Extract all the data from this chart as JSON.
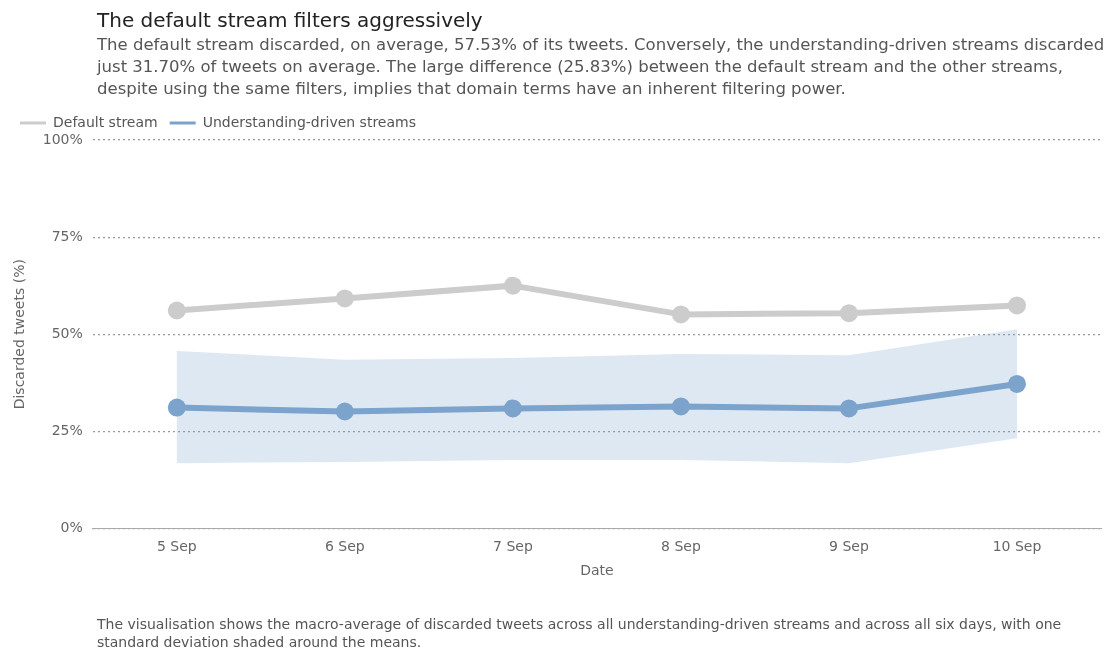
{
  "chart_data": {
    "type": "line",
    "title": "The default stream filters aggressively",
    "subtitle": "The default stream discarded, on average, 57.53% of its tweets. Conversely, the understanding-driven streams discarded just 31.70% of tweets on average. The large difference (25.83%) between the default stream and the other streams, despite using the same filters, implies that domain terms have an inherent filtering power.",
    "xlabel": "Date",
    "ylabel": "Discarded tweets (%)",
    "categories": [
      "5 Sep",
      "6 Sep",
      "7 Sep",
      "8 Sep",
      "9 Sep",
      "10 Sep"
    ],
    "series": [
      {
        "name": "Default stream",
        "color": "#cccccc",
        "values": [
          56.1,
          59.2,
          62.5,
          55.1,
          55.4,
          57.4
        ]
      },
      {
        "name": "Understanding-driven streams",
        "color": "#7ba3cc",
        "values": [
          31.1,
          30.1,
          30.9,
          31.4,
          30.9,
          37.2
        ],
        "lower": [
          16.8,
          17.1,
          17.6,
          17.6,
          16.8,
          23.2
        ],
        "upper": [
          45.7,
          43.4,
          43.9,
          44.9,
          44.6,
          51.3
        ]
      }
    ],
    "ylim": [
      0,
      100
    ],
    "yticks": [
      {
        "value": 0,
        "label": "0%"
      },
      {
        "value": 25,
        "label": "25%"
      },
      {
        "value": 50,
        "label": "50%"
      },
      {
        "value": 75,
        "label": "75%"
      },
      {
        "value": 100,
        "label": "100%"
      }
    ],
    "grid": "y",
    "legend": "top left",
    "marker": "circle",
    "line_style": "solid",
    "annotations": [
      "The visualisation shows the macro-average of discarded tweets across all understanding-driven streams and across all six days, with one standard deviation shaded around the means."
    ]
  }
}
